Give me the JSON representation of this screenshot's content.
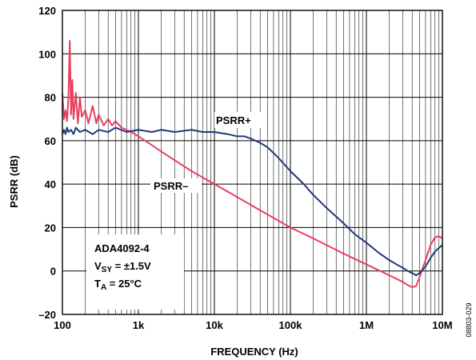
{
  "chart_data": {
    "type": "line",
    "xlabel": "FREQUENCY (Hz)",
    "ylabel": "PSRR (dB)",
    "x_scale": "log",
    "xlim": [
      100,
      10000000
    ],
    "ylim": [
      -20,
      120
    ],
    "x_ticks": [
      {
        "value": 100,
        "label": "100"
      },
      {
        "value": 1000,
        "label": "1k"
      },
      {
        "value": 10000,
        "label": "10k"
      },
      {
        "value": 100000,
        "label": "100k"
      },
      {
        "value": 1000000,
        "label": "1M"
      },
      {
        "value": 10000000,
        "label": "10M"
      }
    ],
    "y_ticks": [
      {
        "value": -20,
        "label": "–20"
      },
      {
        "value": 0,
        "label": "0"
      },
      {
        "value": 20,
        "label": "20"
      },
      {
        "value": 40,
        "label": "40"
      },
      {
        "value": 60,
        "label": "60"
      },
      {
        "value": 80,
        "label": "80"
      },
      {
        "value": 100,
        "label": "100"
      },
      {
        "value": 120,
        "label": "120"
      }
    ],
    "grid": true,
    "series": [
      {
        "name": "PSRR+",
        "color": "#1f3a7a",
        "x": [
          100,
          105,
          110,
          115,
          120,
          130,
          140,
          150,
          170,
          200,
          250,
          300,
          400,
          500,
          700,
          1000,
          1500,
          2000,
          3000,
          5000,
          7000,
          10000,
          15000,
          20000,
          25000,
          30000,
          40000,
          50000,
          70000,
          100000,
          150000,
          200000,
          300000,
          500000,
          700000,
          1000000,
          1500000,
          2000000,
          2500000,
          3000000,
          3500000,
          4000000,
          4500000,
          5000000,
          6000000,
          7000000,
          8000000,
          10000000
        ],
        "y": [
          63,
          65,
          63,
          66,
          64,
          65,
          63,
          66,
          64,
          65,
          63,
          65,
          64,
          66,
          64,
          65,
          64,
          65,
          64,
          65,
          64,
          64,
          63,
          62,
          62,
          61,
          59,
          57,
          52,
          46,
          40,
          35,
          29,
          22,
          17,
          13,
          8,
          5,
          3,
          1.5,
          0,
          -1,
          -2,
          -1,
          2,
          6,
          9,
          12
        ]
      },
      {
        "name": "PSRR−",
        "color": "#e8405e",
        "x": [
          100,
          105,
          110,
          115,
          120,
          125,
          130,
          135,
          140,
          150,
          160,
          170,
          180,
          200,
          220,
          250,
          280,
          300,
          350,
          400,
          450,
          500,
          600,
          700,
          800,
          1000,
          1500,
          2000,
          3000,
          5000,
          10000,
          20000,
          50000,
          100000,
          200000,
          500000,
          1000000,
          2000000,
          3000000,
          3500000,
          4000000,
          4500000,
          5000000,
          6000000,
          7000000,
          8000000,
          9000000,
          10000000
        ],
        "y": [
          82,
          70,
          74,
          69,
          80,
          106,
          72,
          88,
          70,
          82,
          68,
          80,
          71,
          74,
          68,
          76,
          68,
          72,
          67,
          70,
          67,
          69,
          66,
          65,
          64,
          62,
          58,
          55,
          51,
          46,
          40,
          34,
          26,
          20,
          15,
          8,
          3,
          -2,
          -5,
          -6.5,
          -7.5,
          -7,
          -3,
          5,
          12,
          15.5,
          16,
          15
        ]
      }
    ],
    "annotations": [
      {
        "text": "PSRR+"
      },
      {
        "text": "PSRR–"
      }
    ],
    "conditions": {
      "part": "ADA4092-4",
      "vsy_prefix": "V",
      "vsy_sub": "SY",
      "vsy_value": " = ±1.5V",
      "ta_prefix": "T",
      "ta_sub": "A",
      "ta_value": " = 25°C"
    },
    "figure_id": "08803-029"
  }
}
